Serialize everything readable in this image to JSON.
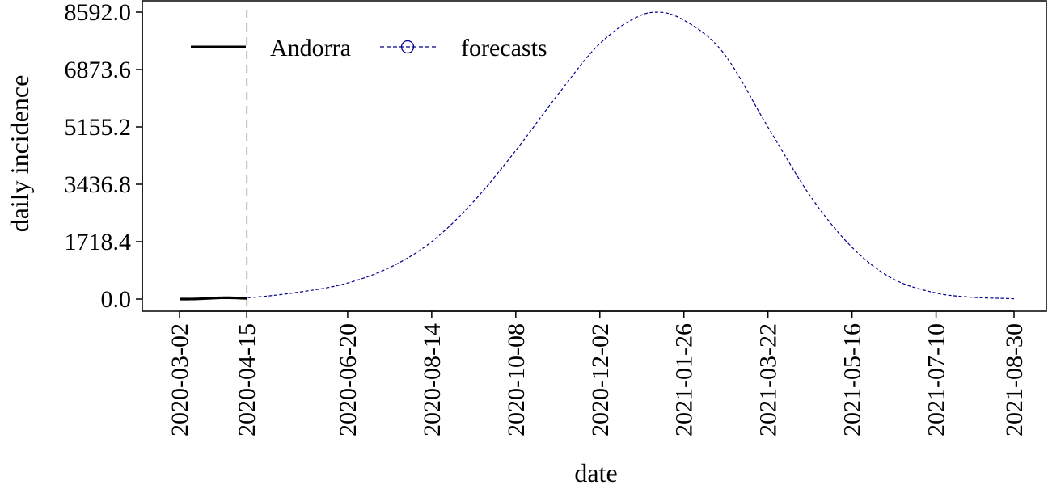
{
  "chart_data": {
    "type": "line",
    "title": "",
    "xlabel": "date",
    "ylabel": "daily incidence",
    "x_ticks": [
      "2020-03-02",
      "2020-04-15",
      "2020-06-20",
      "2020-08-14",
      "2020-10-08",
      "2020-12-02",
      "2021-01-26",
      "2021-03-22",
      "2021-05-16",
      "2021-07-10",
      "2021-08-30"
    ],
    "y_ticks": [
      0.0,
      1718.4,
      3436.8,
      5155.2,
      6873.6,
      8592.0
    ],
    "y_tick_labels": [
      "0.0",
      "1718.4",
      "3436.8",
      "5155.2",
      "6873.6",
      "8592.0"
    ],
    "ylim": [
      0.0,
      8592.0
    ],
    "xlim": [
      "2020-03-02",
      "2021-08-30"
    ],
    "grid": false,
    "legend_position": "top-left",
    "forecast_start": "2020-04-15",
    "series": [
      {
        "name": "Andorra",
        "style": "solid",
        "color": "#000000",
        "x": [
          "2020-03-02",
          "2020-03-12",
          "2020-03-22",
          "2020-04-01",
          "2020-04-10",
          "2020-04-15"
        ],
        "y": [
          0,
          3,
          25,
          40,
          30,
          20
        ]
      },
      {
        "name": "forecasts",
        "style": "dashed",
        "marker": "circle",
        "color": "#00008b",
        "x": [
          "2020-03-02",
          "2020-03-22",
          "2020-04-15",
          "2020-05-15",
          "2020-06-20",
          "2020-07-20",
          "2020-08-14",
          "2020-09-10",
          "2020-10-08",
          "2020-11-05",
          "2020-12-02",
          "2020-12-30",
          "2021-01-10",
          "2021-01-26",
          "2021-02-20",
          "2021-03-22",
          "2021-04-20",
          "2021-05-16",
          "2021-06-10",
          "2021-07-10",
          "2021-08-01",
          "2021-08-30"
        ],
        "y": [
          0,
          10,
          40,
          180,
          480,
          1000,
          1720,
          2900,
          4450,
          6150,
          7650,
          8520,
          8590,
          8350,
          7420,
          5150,
          3000,
          1550,
          650,
          180,
          60,
          10
        ]
      }
    ]
  }
}
